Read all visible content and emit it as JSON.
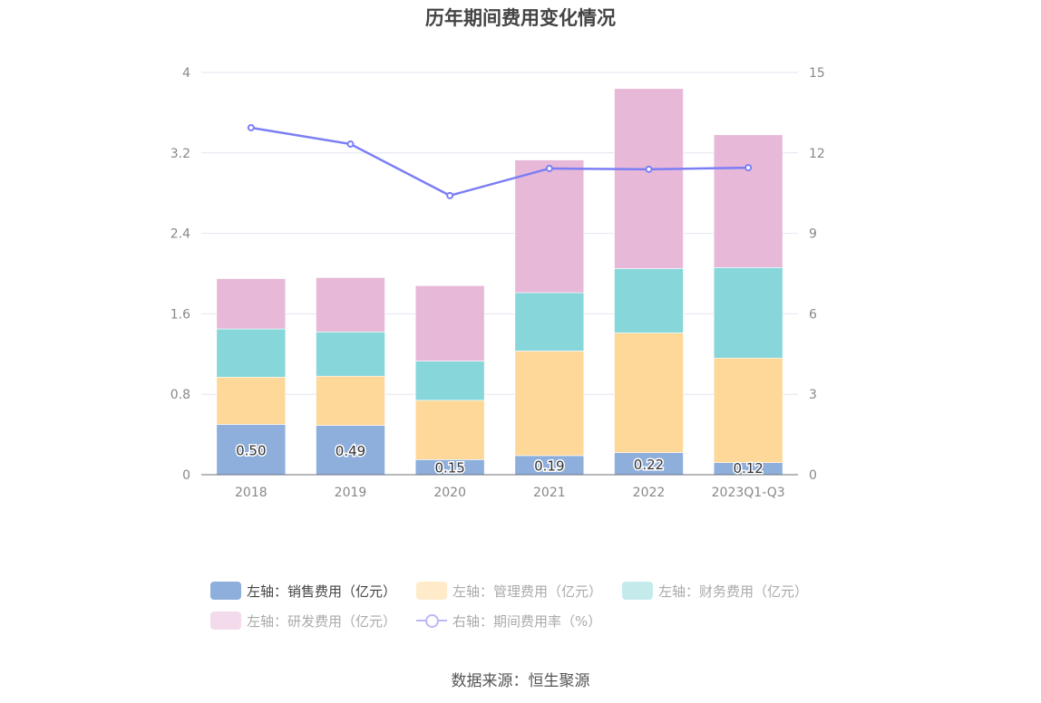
{
  "chart_data": {
    "type": "bar",
    "title": "历年期间费用变化情况",
    "categories": [
      "2018",
      "2019",
      "2020",
      "2021",
      "2022",
      "2023Q1-Q3"
    ],
    "stacked": true,
    "y_left": {
      "ylim": [
        0,
        4
      ],
      "ticks": [
        "0",
        "0.8",
        "1.6",
        "2.4",
        "3.2",
        "4"
      ]
    },
    "y_right": {
      "ylim": [
        0,
        15
      ],
      "ticks": [
        "0",
        "3",
        "6",
        "9",
        "12",
        "15"
      ]
    },
    "grid": true,
    "legend_position": "bottom",
    "series": [
      {
        "name": "左轴：销售费用（亿元）",
        "axis": "left",
        "type": "bar",
        "color": "#8eaedc",
        "values": [
          0.5,
          0.49,
          0.15,
          0.19,
          0.22,
          0.12
        ],
        "data_labels": [
          "0.50",
          "0.49",
          "0.15",
          "0.19",
          "0.22",
          "0.12"
        ]
      },
      {
        "name": "左轴：管理费用（亿元）",
        "axis": "left",
        "type": "bar",
        "color": "#fed899",
        "values": [
          0.47,
          0.49,
          0.59,
          1.04,
          1.19,
          1.04
        ]
      },
      {
        "name": "左轴：财务费用（亿元）",
        "axis": "left",
        "type": "bar",
        "color": "#86d6da",
        "values": [
          0.48,
          0.44,
          0.39,
          0.58,
          0.64,
          0.9
        ]
      },
      {
        "name": "左轴：研发费用（亿元）",
        "axis": "left",
        "type": "bar",
        "color": "#e8b8d8",
        "values": [
          0.5,
          0.54,
          0.75,
          1.32,
          1.79,
          1.32
        ]
      },
      {
        "name": "右轴：期间费用率（%）",
        "axis": "right",
        "type": "line",
        "color": "#7b7ef5",
        "values": [
          12.94,
          12.33,
          10.41,
          11.42,
          11.39,
          11.45
        ]
      }
    ]
  },
  "legend_swatch_colors": [
    "#8eaedc",
    "#ffebc9",
    "#c4eaec",
    "#f3dbeb",
    "#b8b8f8"
  ],
  "source": "数据来源：恒生聚源"
}
